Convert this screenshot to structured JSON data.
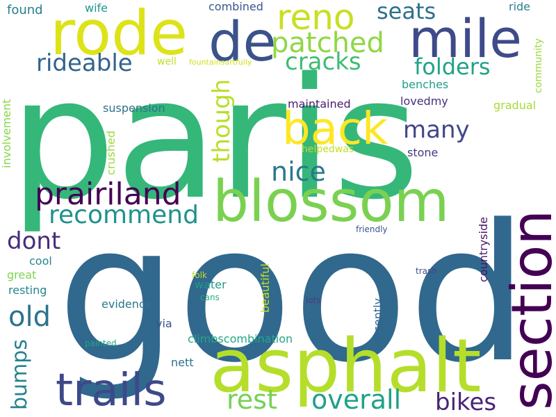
{
  "words": [
    {
      "text": "paris",
      "color": "#35b779"
    },
    {
      "text": "good",
      "color": "#31688e"
    },
    {
      "text": "asphalt",
      "color": "#b5de2b"
    },
    {
      "text": "section",
      "color": "#440154"
    },
    {
      "text": "blossom",
      "color": "#7ad151"
    },
    {
      "text": "mile",
      "color": "#3e4a89"
    },
    {
      "text": "rode",
      "color": "#dde318"
    },
    {
      "text": "de",
      "color": "#3b528b"
    },
    {
      "text": "reno",
      "color": "#c8e020"
    },
    {
      "text": "trails",
      "color": "#3e4989"
    },
    {
      "text": "back",
      "color": "#fde725"
    },
    {
      "text": "prairiland",
      "color": "#440154"
    },
    {
      "text": "patched",
      "color": "#8fd744"
    },
    {
      "text": "overall",
      "color": "#1fa188"
    },
    {
      "text": "rest",
      "color": "#75d054"
    },
    {
      "text": "nice",
      "color": "#2a788e"
    },
    {
      "text": "recommend",
      "color": "#21918c"
    },
    {
      "text": "old",
      "color": "#2c728e"
    },
    {
      "text": "rideable",
      "color": "#33638d"
    },
    {
      "text": "cracks",
      "color": "#3dbc74"
    },
    {
      "text": "many",
      "color": "#404688"
    },
    {
      "text": "bikes",
      "color": "#482475"
    },
    {
      "text": "seats",
      "color": "#2d708e"
    },
    {
      "text": "folders",
      "color": "#20a386"
    },
    {
      "text": "though",
      "color": "#b8de29"
    },
    {
      "text": "dont",
      "color": "#472d7b"
    },
    {
      "text": "bumps",
      "color": "#26828e"
    },
    {
      "text": "suspension",
      "color": "#2e6f8e"
    },
    {
      "text": "maintained",
      "color": "#481b6d"
    },
    {
      "text": "lovedmy",
      "color": "#46307e"
    },
    {
      "text": "benches",
      "color": "#1f9e89"
    },
    {
      "text": "gradual",
      "color": "#a5db36"
    },
    {
      "text": "stone",
      "color": "#453781"
    },
    {
      "text": "helpedwas",
      "color": "#c0df25"
    },
    {
      "text": "crushed",
      "color": "#9bd93c"
    },
    {
      "text": "involvement",
      "color": "#86d549"
    },
    {
      "text": "community",
      "color": "#9bd93c"
    },
    {
      "text": "found",
      "color": "#287c8e"
    },
    {
      "text": "wife",
      "color": "#1f968b"
    },
    {
      "text": "combined",
      "color": "#39568c"
    },
    {
      "text": "ride",
      "color": "#27808e"
    },
    {
      "text": "well",
      "color": "#c2df23"
    },
    {
      "text": "fountainsartfully",
      "color": "#d0e11c"
    },
    {
      "text": "cool",
      "color": "#23888e"
    },
    {
      "text": "great",
      "color": "#7fd34e"
    },
    {
      "text": "resting",
      "color": "#25848e"
    },
    {
      "text": "water",
      "color": "#1e9b8a"
    },
    {
      "text": "evidence",
      "color": "#2a768e"
    },
    {
      "text": "via",
      "color": "#3b528b"
    },
    {
      "text": "climbscombination",
      "color": "#22a884"
    },
    {
      "text": "nett",
      "color": "#2c718e"
    },
    {
      "text": "beautiful",
      "color": "#cae11f"
    },
    {
      "text": "recently",
      "color": "#31668e"
    },
    {
      "text": "countryside",
      "color": "#481467"
    },
    {
      "text": "friendly",
      "color": "#39558c"
    },
    {
      "text": "trash",
      "color": "#3f4889"
    },
    {
      "text": "folk",
      "color": "#bddf26"
    },
    {
      "text": "cans",
      "color": "#29af7f"
    },
    {
      "text": "lots",
      "color": "#433e85"
    },
    {
      "text": "painted",
      "color": "#20a486"
    }
  ]
}
